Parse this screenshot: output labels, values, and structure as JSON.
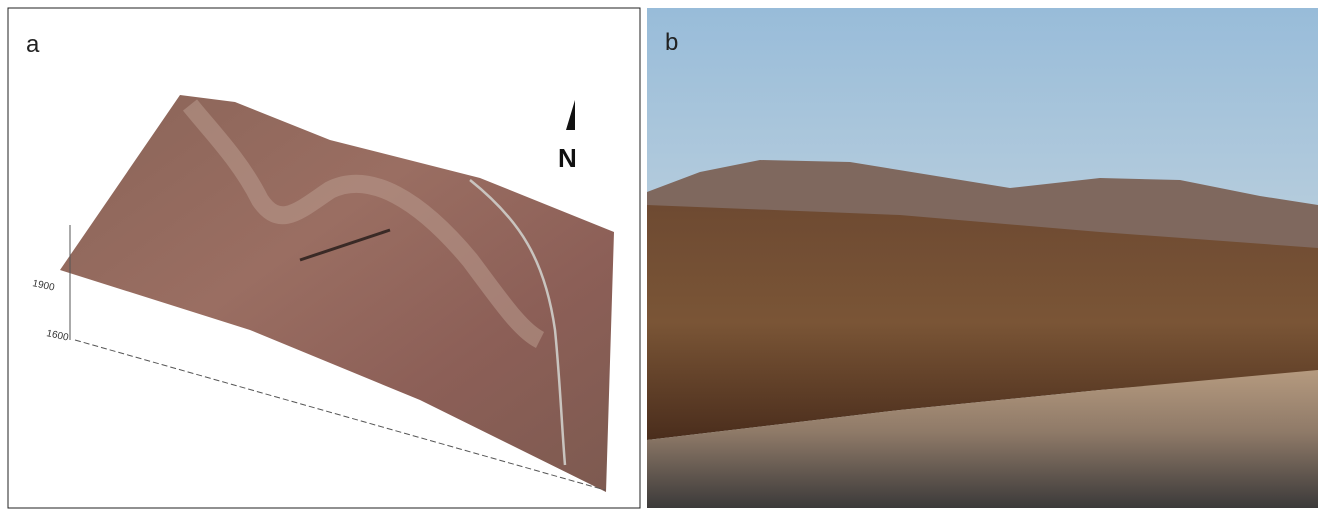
{
  "panels": [
    {
      "label": "a",
      "north": "N",
      "elevation_ticks": [
        "1900",
        "1600"
      ]
    },
    {
      "label": "b"
    }
  ]
}
